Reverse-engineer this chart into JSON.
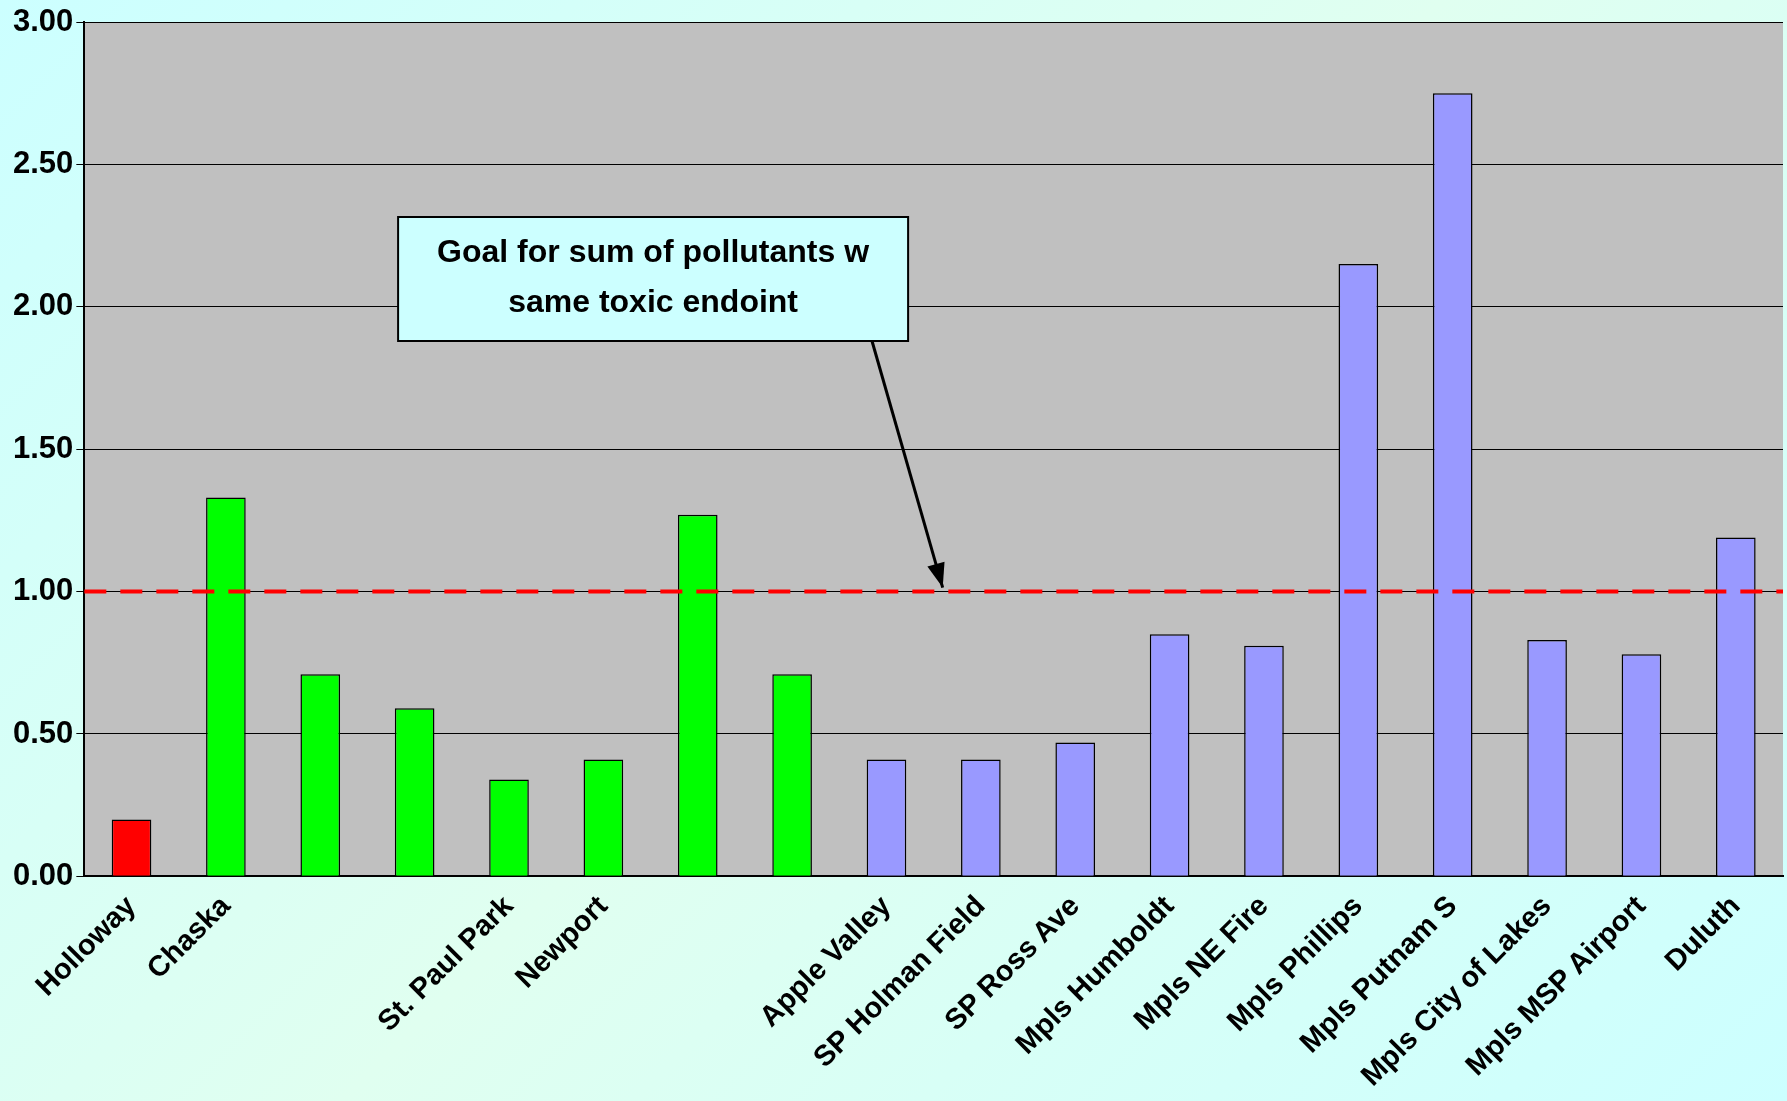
{
  "chart_data": {
    "type": "bar",
    "categories": [
      "Holloway",
      "Chaska",
      null,
      null,
      "St. Paul Park",
      "Newport",
      null,
      null,
      "Apple Valley",
      "SP Holman Field",
      "SP Ross Ave",
      "Mpls Humboldt",
      "Mpls NE Fire",
      "Mpls Phillips",
      "Mpls Putnam S",
      "Mpls City of Lakes",
      "Mpls MSP Airport",
      "Duluth"
    ],
    "values": [
      0.2,
      1.33,
      0.71,
      0.59,
      0.34,
      0.41,
      1.27,
      0.71,
      0.41,
      0.41,
      0.47,
      0.85,
      0.81,
      2.15,
      2.75,
      0.83,
      0.78,
      1.19
    ],
    "colors": [
      "#ff0000",
      "#00ff00",
      "#00ff00",
      "#00ff00",
      "#00ff00",
      "#00ff00",
      "#00ff00",
      "#00ff00",
      "#9999ff",
      "#9999ff",
      "#9999ff",
      "#9999ff",
      "#9999ff",
      "#9999ff",
      "#9999ff",
      "#9999ff",
      "#9999ff",
      "#9999ff"
    ],
    "ylim": [
      0,
      3
    ],
    "yticks": [
      {
        "value": 0,
        "label": "0.00"
      },
      {
        "value": 0.5,
        "label": "0.50"
      },
      {
        "value": 1,
        "label": "1.00"
      },
      {
        "value": 1.5,
        "label": "1.50"
      },
      {
        "value": 2,
        "label": "2.00"
      },
      {
        "value": 2.5,
        "label": "2.50"
      },
      {
        "value": 3,
        "label": "3.00"
      }
    ],
    "grid": "y",
    "legend": false,
    "ref_lines": [
      {
        "axis": "y",
        "value": 1,
        "label": "Goal for sum of pollutants w same toxic endoint",
        "color": "#ff0000",
        "line_style": "dashed"
      }
    ]
  }
}
